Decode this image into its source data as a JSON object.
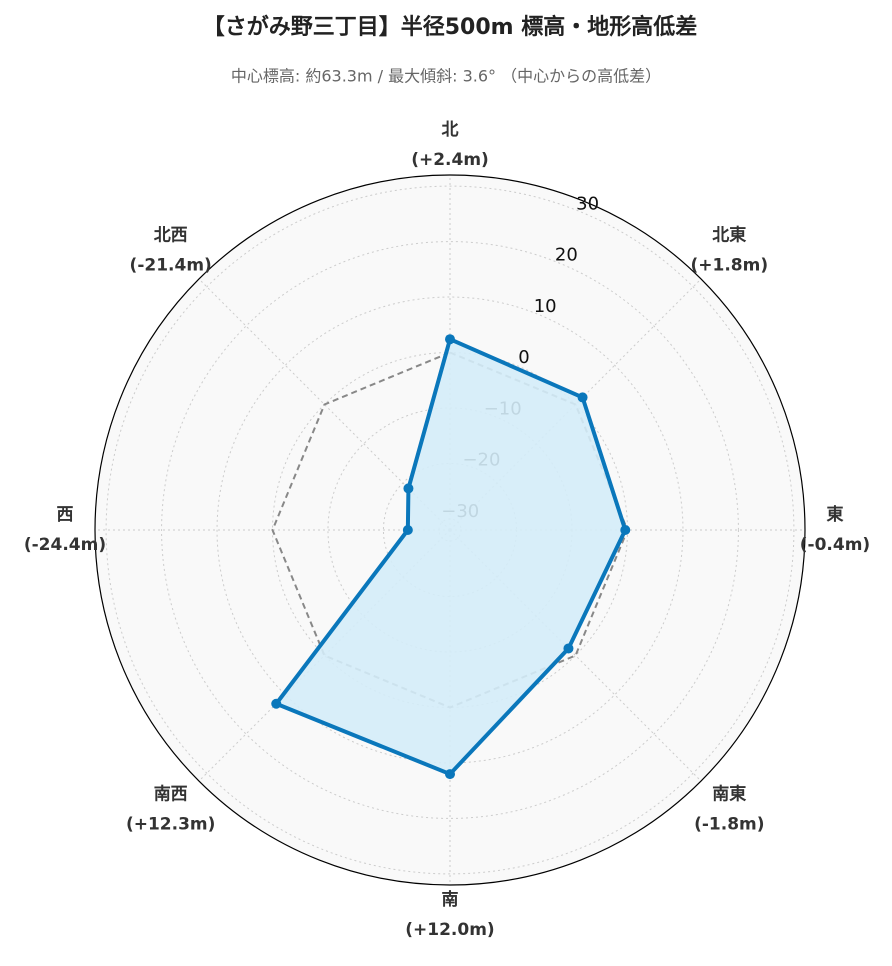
{
  "chart_data": {
    "type": "radar",
    "title": "【さがみ野三丁目】半径500m 標高・地形高低差",
    "subtitle": "中心標高: 約63.3m / 最大傾斜: 3.6° （中心からの高低差）",
    "categories": [
      "北",
      "北東",
      "東",
      "南東",
      "南",
      "南西",
      "西",
      "北西"
    ],
    "value_labels": [
      "(+2.4m)",
      "(+1.8m)",
      "(-0.4m)",
      "(-1.8m)",
      "(+12.0m)",
      "(+12.3m)",
      "(-24.4m)",
      "(-21.4m)"
    ],
    "values": [
      2.4,
      1.8,
      -0.4,
      -1.8,
      12.0,
      12.3,
      -24.4,
      -21.4
    ],
    "color": "#0a77bb",
    "fill_color": "#d4ecf8",
    "reference_values": [
      0,
      0,
      0,
      0,
      0,
      0,
      0,
      0
    ],
    "reference_color": "#888888",
    "ylim": [
      -32,
      32
    ],
    "yticks": [
      {
        "value": -30,
        "label": "−30"
      },
      {
        "value": -20,
        "label": "−20"
      },
      {
        "value": -10,
        "label": "−10"
      },
      0,
      10,
      20,
      30
    ],
    "grid": true
  }
}
